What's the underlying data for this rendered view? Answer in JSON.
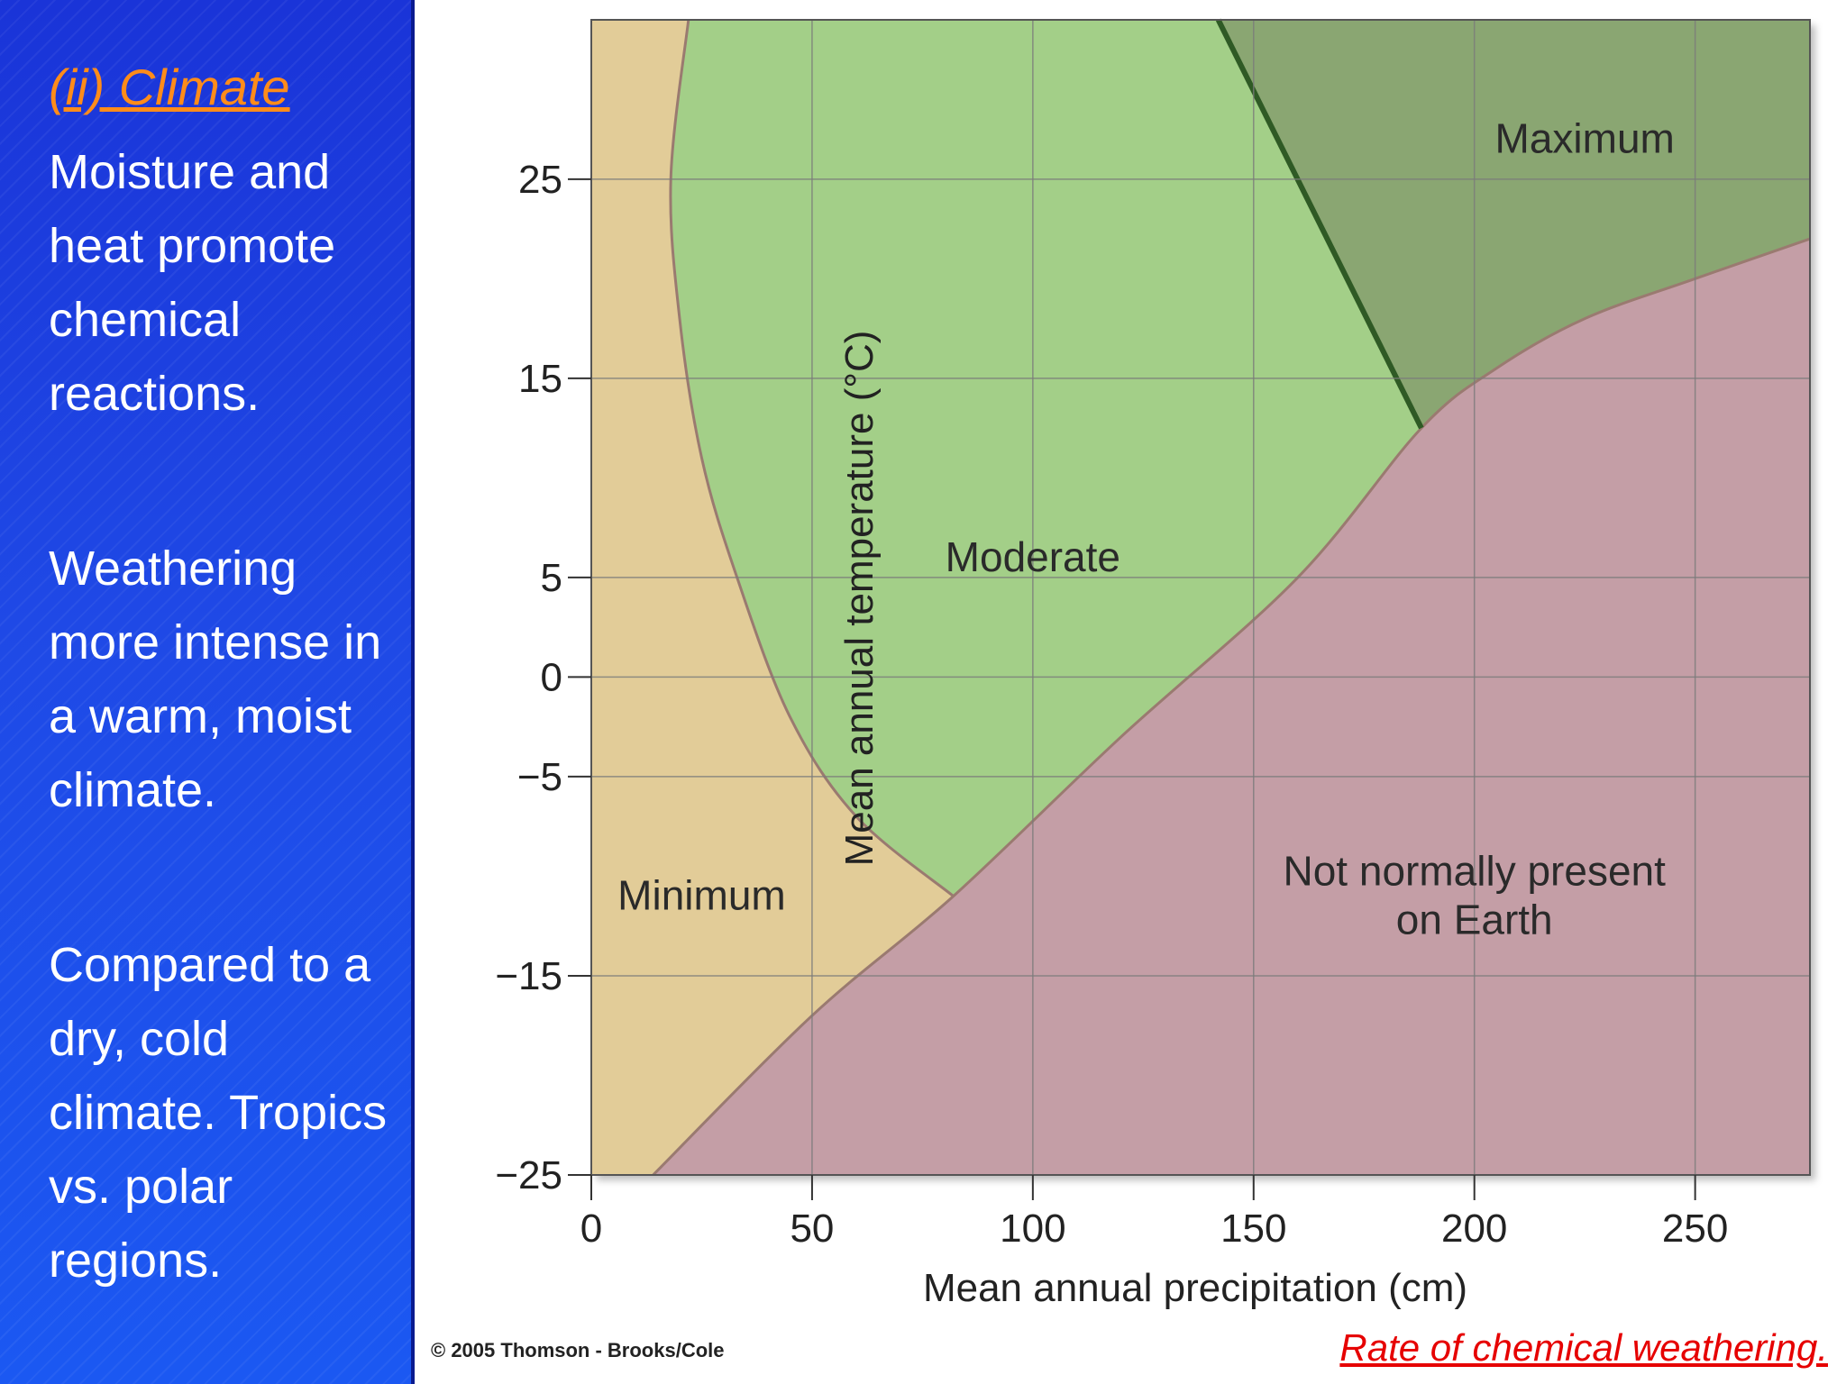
{
  "sidebar": {
    "heading": "(ii) Climate",
    "paragraphs": [
      "Moisture and heat promote chemical reactions.",
      "Weathering more intense in a warm, moist climate.",
      "Compared to a dry, cold climate. Tropics vs. polar regions."
    ]
  },
  "chart_data": {
    "type": "area",
    "xlabel": "Mean annual precipitation (cm)",
    "ylabel": "Mean annual temperature (°C)",
    "x_ticks": [
      0,
      50,
      100,
      150,
      200,
      250
    ],
    "y_ticks": [
      -25,
      -15,
      -5,
      0,
      5,
      15,
      25
    ],
    "x_tick_labels": [
      "0",
      "50",
      "100",
      "150",
      "200",
      "250"
    ],
    "y_tick_labels": [
      "−25",
      "−15",
      "−5",
      "0",
      "5",
      "15",
      "25"
    ],
    "xlim": [
      0,
      276
    ],
    "ylim": [
      -25,
      33
    ],
    "grid": true,
    "regions": [
      {
        "name": "Minimum",
        "label": "Minimum",
        "color": "#e2cc98",
        "label_at": [
          25,
          -11
        ]
      },
      {
        "name": "Moderate",
        "label": "Moderate",
        "color": "#a3cf88",
        "label_at": [
          100,
          6
        ],
        "boundary": [
          [
            22,
            33
          ],
          [
            18,
            25
          ],
          [
            20,
            18
          ],
          [
            25,
            11
          ],
          [
            33,
            5
          ],
          [
            45,
            -2
          ],
          [
            60,
            -7
          ],
          [
            82,
            -11
          ]
        ]
      },
      {
        "name": "Maximum",
        "label": "Maximum",
        "color": "#8aa672",
        "label_at": [
          225,
          27
        ],
        "boundary": [
          [
            142,
            33
          ],
          [
            188,
            12.5
          ]
        ]
      },
      {
        "name": "Not normally present on Earth",
        "label_lines": [
          "Not normally present",
          "on Earth"
        ],
        "color": "#c49ea6",
        "label_at": [
          200,
          -11
        ],
        "boundary": [
          [
            14,
            -25
          ],
          [
            50,
            -17
          ],
          [
            82,
            -11
          ],
          [
            120,
            -3
          ],
          [
            160,
            5
          ],
          [
            188,
            12.5
          ],
          [
            205,
            15.5
          ],
          [
            225,
            18
          ],
          [
            250,
            20
          ],
          [
            276,
            22
          ]
        ]
      }
    ]
  },
  "footer": {
    "copyright": "© 2005 Thomson - Brooks/Cole",
    "caption": "Rate of chemical weathering."
  },
  "colors": {
    "sidebar_bg": "#1f49e6",
    "heading": "#ff8c1a",
    "caption": "#e60000",
    "grid": "#7a7a7a",
    "region_border": "#9a7a70",
    "maximum_line": "#2f5a25"
  }
}
